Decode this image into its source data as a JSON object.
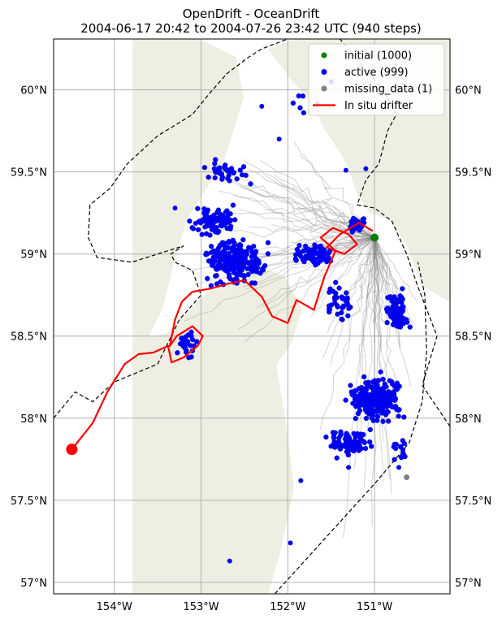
{
  "chart_data": {
    "type": "scatter",
    "title_line1": "OpenDrift - OceanDrift",
    "title_line2": "2004-06-17 20:42 to 2004-07-26 23:42 UTC (940 steps)",
    "xlim": [
      -154.7,
      -150.13
    ],
    "ylim": [
      56.93,
      60.31
    ],
    "x_ticks": [
      -154,
      -153,
      -152,
      -151
    ],
    "x_tick_labels": [
      "154°W",
      "153°W",
      "152°W",
      "151°W"
    ],
    "y_ticks": [
      57.0,
      57.5,
      58.0,
      58.5,
      59.0,
      59.5,
      60.0
    ],
    "y_tick_labels": [
      "57°N",
      "57.5°N",
      "58°N",
      "58.5°N",
      "59°N",
      "59.5°N",
      "60°N"
    ],
    "grid": true,
    "legend_position": "top-right",
    "legend": [
      {
        "label": "initial (1000)",
        "kind": "dot",
        "color": "#008000"
      },
      {
        "label": "active (999)",
        "kind": "dot",
        "color": "#0000ff"
      },
      {
        "label": "missing_data (1)",
        "kind": "dot",
        "color": "#808080"
      },
      {
        "label": "In situ drifter",
        "kind": "line",
        "color": "#ff0000"
      }
    ],
    "colors": {
      "land": "#eeeee2",
      "trajectory": "#808080",
      "drifter": "#ff0000",
      "active": "#0000ff",
      "initial": "#008000",
      "missing": "#808080",
      "boundary": "#000000"
    },
    "initial_position": {
      "lon": -151.0,
      "lat": 59.1
    },
    "missing_data_points": [
      {
        "lon": -150.63,
        "lat": 57.64
      }
    ],
    "drifter_end_marker": {
      "lon": -154.49,
      "lat": 57.81
    },
    "drifter_track": [
      [
        -154.49,
        57.81
      ],
      [
        -154.25,
        57.97
      ],
      [
        -154.08,
        58.16
      ],
      [
        -153.88,
        58.33
      ],
      [
        -153.72,
        58.39
      ],
      [
        -153.55,
        58.4
      ],
      [
        -153.38,
        58.44
      ],
      [
        -153.34,
        58.34
      ],
      [
        -153.2,
        58.37
      ],
      [
        -153.04,
        58.44
      ],
      [
        -152.98,
        58.5
      ],
      [
        -153.1,
        58.56
      ],
      [
        -153.28,
        58.5
      ],
      [
        -153.36,
        58.44
      ],
      [
        -153.3,
        58.6
      ],
      [
        -153.22,
        58.71
      ],
      [
        -153.1,
        58.77
      ],
      [
        -152.88,
        58.79
      ],
      [
        -152.68,
        58.82
      ],
      [
        -152.5,
        58.84
      ],
      [
        -152.3,
        58.74
      ],
      [
        -152.18,
        58.62
      ],
      [
        -152.0,
        58.58
      ],
      [
        -151.9,
        58.72
      ],
      [
        -151.7,
        58.66
      ],
      [
        -151.58,
        58.86
      ],
      [
        -151.45,
        59.02
      ],
      [
        -151.62,
        59.1
      ],
      [
        -151.48,
        59.16
      ],
      [
        -151.3,
        59.12
      ],
      [
        -151.2,
        59.06
      ],
      [
        -151.35,
        59.0
      ],
      [
        -151.55,
        59.04
      ],
      [
        -151.4,
        59.12
      ],
      [
        -151.18,
        59.19
      ],
      [
        -151.02,
        59.14
      ]
    ],
    "trajectory_fans": [
      {
        "lons": [
          -153.0,
          -151.3
        ],
        "lats": [
          59.1,
          59.7
        ],
        "count": 14,
        "spread": 0.5
      },
      {
        "lons": [
          -152.9,
          -152.2
        ],
        "lats": [
          58.95,
          59.65
        ],
        "count": 10,
        "spread": 0.4
      },
      {
        "lons": [
          -152.6,
          -151.0
        ],
        "lats": [
          58.6,
          59.2
        ],
        "count": 16,
        "spread": 0.35
      },
      {
        "lons": [
          -151.7,
          -150.5
        ],
        "lats": [
          57.8,
          58.8
        ],
        "count": 18,
        "spread": 0.4
      },
      {
        "lons": [
          -151.4,
          -150.8
        ],
        "lats": [
          57.2,
          57.9
        ],
        "count": 8,
        "spread": 0.3
      },
      {
        "lons": [
          -153.2,
          -152.3
        ],
        "lats": [
          58.45,
          58.95
        ],
        "count": 8,
        "spread": 0.25
      },
      {
        "lons": [
          -150.9,
          -150.45
        ],
        "lats": [
          58.4,
          58.95
        ],
        "count": 10,
        "spread": 0.2
      }
    ],
    "active_clusters": [
      {
        "lon": -152.6,
        "lat": 58.95,
        "dlon": 0.45,
        "dlat": 0.18,
        "count": 220
      },
      {
        "lon": -152.85,
        "lat": 59.2,
        "dlon": 0.35,
        "dlat": 0.12,
        "count": 80
      },
      {
        "lon": -152.7,
        "lat": 59.5,
        "dlon": 0.35,
        "dlat": 0.12,
        "count": 35
      },
      {
        "lon": -151.7,
        "lat": 59.0,
        "dlon": 0.35,
        "dlat": 0.1,
        "count": 70
      },
      {
        "lon": -151.4,
        "lat": 58.7,
        "dlon": 0.2,
        "dlat": 0.15,
        "count": 40
      },
      {
        "lon": -151.2,
        "lat": 59.18,
        "dlon": 0.12,
        "dlat": 0.06,
        "count": 50
      },
      {
        "lon": -150.75,
        "lat": 58.65,
        "dlon": 0.18,
        "dlat": 0.16,
        "count": 80
      },
      {
        "lon": -151.0,
        "lat": 58.12,
        "dlon": 0.38,
        "dlat": 0.18,
        "count": 250
      },
      {
        "lon": -151.3,
        "lat": 57.85,
        "dlon": 0.35,
        "dlat": 0.1,
        "count": 90
      },
      {
        "lon": -153.15,
        "lat": 58.45,
        "dlon": 0.15,
        "dlat": 0.12,
        "count": 25
      },
      {
        "lon": -150.7,
        "lat": 57.8,
        "dlon": 0.12,
        "dlat": 0.1,
        "count": 15
      },
      {
        "lon": -151.8,
        "lat": 59.9,
        "dlon": 0.2,
        "dlat": 0.1,
        "count": 6
      }
    ],
    "scattered_active": [
      [
        -151.97,
        57.24
      ],
      [
        -152.67,
        57.13
      ],
      [
        -151.85,
        57.62
      ],
      [
        -151.1,
        59.52
      ],
      [
        -152.1,
        59.7
      ],
      [
        -151.5,
        60.05
      ],
      [
        -152.3,
        59.9
      ],
      [
        -151.33,
        59.51
      ],
      [
        -153.3,
        59.28
      ],
      [
        -150.72,
        57.7
      ],
      [
        -151.3,
        57.7
      ]
    ],
    "boundary_path": [
      [
        -154.7,
        58.0
      ],
      [
        -154.45,
        58.16
      ],
      [
        -154.25,
        58.1
      ],
      [
        -154.0,
        58.22
      ],
      [
        -153.5,
        58.33
      ],
      [
        -153.25,
        58.6
      ],
      [
        -153.0,
        58.75
      ],
      [
        -153.1,
        58.9
      ],
      [
        -153.3,
        58.95
      ],
      [
        -153.35,
        59.0
      ],
      [
        -153.2,
        59.05
      ],
      [
        -153.5,
        59.0
      ],
      [
        -153.8,
        58.95
      ],
      [
        -154.2,
        58.98
      ],
      [
        -154.3,
        59.1
      ],
      [
        -154.28,
        59.3
      ],
      [
        -154.05,
        59.4
      ],
      [
        -153.85,
        59.55
      ],
      [
        -153.5,
        59.72
      ],
      [
        -153.1,
        59.85
      ],
      [
        -152.9,
        59.98
      ],
      [
        -152.7,
        60.1
      ],
      [
        -152.45,
        60.2
      ],
      [
        -152.3,
        60.25
      ],
      [
        -152.0,
        60.31
      ]
    ],
    "boundary_path_2": [
      [
        -150.13,
        57.95
      ],
      [
        -150.45,
        58.2
      ],
      [
        -150.28,
        58.5
      ],
      [
        -150.5,
        58.8
      ],
      [
        -150.63,
        59.0
      ],
      [
        -150.8,
        59.2
      ],
      [
        -151.0,
        59.28
      ],
      [
        -151.2,
        59.3
      ],
      [
        -151.1,
        59.45
      ],
      [
        -150.95,
        59.55
      ],
      [
        -150.85,
        59.75
      ],
      [
        -150.75,
        59.85
      ],
      [
        -150.9,
        60.0
      ],
      [
        -151.1,
        60.12
      ],
      [
        -151.3,
        60.25
      ],
      [
        -151.4,
        60.31
      ]
    ],
    "coast_path": [
      [
        -152.15,
        56.93
      ],
      [
        -151.6,
        57.25
      ],
      [
        -151.0,
        57.6
      ],
      [
        -150.6,
        57.85
      ],
      [
        -150.45,
        58.1
      ],
      [
        -150.4,
        58.4
      ],
      [
        -150.42,
        58.75
      ],
      [
        -150.5,
        58.95
      ]
    ]
  }
}
